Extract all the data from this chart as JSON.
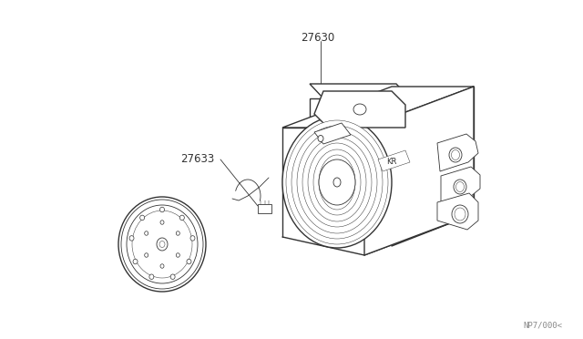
{
  "bg_color": "#ffffff",
  "line_color": "#333333",
  "lw_main": 1.0,
  "lw_thin": 0.6,
  "lw_hair": 0.35,
  "label_27630": "27630",
  "label_27633": "27633",
  "watermark": "NP7/000<",
  "font_size_label": 8.5,
  "font_size_watermark": 6.5,
  "fig_w": 6.4,
  "fig_h": 3.72,
  "dpi": 100
}
